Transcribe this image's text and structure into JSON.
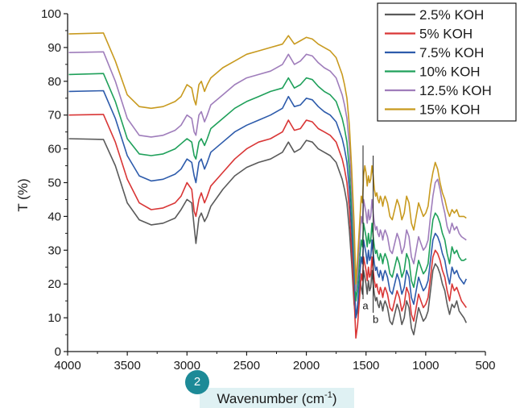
{
  "badge": "2",
  "chart_data": {
    "type": "line",
    "xlabel": "Wavenumber (cm",
    "xlabel_sup": "-1",
    "xlabel_close": ")",
    "ylabel": "T (%)",
    "xlim": [
      4000,
      500
    ],
    "ylim": [
      0,
      100
    ],
    "x_reversed": true,
    "xticks": [
      4000,
      3500,
      3000,
      2500,
      2000,
      1500,
      1000,
      500
    ],
    "yticks": [
      0,
      10,
      20,
      30,
      40,
      50,
      60,
      70,
      80,
      90,
      100
    ],
    "grid": false,
    "legend_position": "top-right",
    "annotations": [
      {
        "text": "a",
        "x": 1525,
        "y": 12.5,
        "line_x": 1525,
        "line_top": 61
      },
      {
        "text": "b",
        "x": 1440,
        "y": 8.5,
        "line_x": 1440,
        "line_top": 58
      }
    ],
    "x": [
      3990,
      3700,
      3600,
      3500,
      3400,
      3300,
      3200,
      3100,
      3050,
      3000,
      2960,
      2940,
      2925,
      2900,
      2880,
      2853,
      2830,
      2800,
      2700,
      2600,
      2500,
      2400,
      2300,
      2200,
      2150,
      2100,
      2050,
      2000,
      1950,
      1900,
      1850,
      1800,
      1750,
      1700,
      1680,
      1660,
      1640,
      1620,
      1600,
      1585,
      1570,
      1560,
      1550,
      1540,
      1530,
      1520,
      1510,
      1500,
      1490,
      1480,
      1470,
      1460,
      1450,
      1440,
      1430,
      1420,
      1410,
      1400,
      1390,
      1380,
      1370,
      1360,
      1350,
      1340,
      1320,
      1300,
      1280,
      1260,
      1240,
      1220,
      1200,
      1180,
      1160,
      1140,
      1120,
      1100,
      1080,
      1060,
      1040,
      1020,
      1000,
      980,
      960,
      940,
      920,
      900,
      880,
      860,
      840,
      820,
      800,
      780,
      760,
      740,
      720,
      700,
      680,
      660
    ],
    "series": [
      {
        "name": "2.5% KOH",
        "color": "#5a5a5a",
        "values": [
          63,
          62.8,
          55,
          44,
          39,
          37.5,
          38,
          39.5,
          42,
          45,
          44,
          37,
          32,
          39.5,
          41,
          38.5,
          40,
          43,
          48,
          52,
          54.5,
          56,
          57,
          59,
          62,
          59,
          60,
          62.5,
          62,
          60,
          59,
          58,
          56,
          51,
          48,
          44,
          36,
          26,
          14,
          10,
          12,
          16,
          21,
          19,
          17,
          24,
          22,
          20,
          17,
          21,
          18,
          19,
          24,
          20,
          17,
          15,
          16,
          14,
          13,
          15,
          14,
          12,
          14,
          15,
          13,
          9,
          8,
          11,
          14,
          12,
          8,
          10,
          15,
          13,
          7,
          5,
          9,
          13,
          11,
          9,
          10,
          12,
          18,
          24,
          26,
          25,
          23,
          20,
          18,
          14,
          11,
          14,
          13,
          15,
          12,
          11,
          10,
          8.5
        ]
      },
      {
        "name": "5% KOH",
        "color": "#d93636",
        "values": [
          70,
          70.2,
          62,
          51,
          44,
          42,
          42.5,
          44,
          46,
          50,
          48,
          41.5,
          40,
          45,
          47,
          44,
          46,
          49,
          53,
          57,
          60,
          62,
          63,
          65,
          68.5,
          65.5,
          66,
          68.5,
          68,
          66,
          65,
          64,
          62,
          57,
          54,
          50,
          42,
          30,
          16,
          4,
          8,
          13,
          18,
          23,
          21,
          28,
          26,
          24,
          21,
          25,
          22,
          23,
          28,
          24,
          21,
          19,
          20,
          18,
          17,
          19,
          18,
          16,
          18,
          19,
          17,
          13,
          12,
          15,
          18,
          16,
          12,
          14,
          19,
          17,
          11,
          9,
          13,
          17,
          15,
          13,
          14,
          16,
          22,
          28,
          30,
          29,
          27,
          24,
          22,
          18,
          15,
          20,
          18,
          19,
          17,
          15,
          14,
          13
        ]
      },
      {
        "name": "7.5% KOH",
        "color": "#2d5bab",
        "values": [
          77,
          77.2,
          69,
          58,
          52,
          50.5,
          51,
          52.5,
          54,
          57,
          56,
          52,
          50,
          56,
          57,
          54,
          56,
          59,
          62,
          65,
          67,
          68.5,
          70,
          72,
          75.5,
          72.5,
          73,
          75,
          74.5,
          72.5,
          71,
          70,
          68,
          63,
          60,
          56,
          48,
          36,
          22,
          10,
          14,
          19,
          24,
          28,
          26,
          33,
          31,
          29,
          26,
          30,
          27,
          28,
          33,
          29,
          26,
          24,
          25,
          23,
          22,
          24,
          23,
          21,
          23,
          24,
          22,
          18,
          17,
          20,
          23,
          21,
          17,
          19,
          24,
          22,
          16,
          14,
          18,
          22,
          20,
          18,
          19,
          21,
          27,
          33,
          35,
          34,
          32,
          29,
          27,
          23,
          20,
          25,
          23,
          24,
          22,
          21,
          20,
          21.5
        ]
      },
      {
        "name": "10% KOH",
        "color": "#1fa05a",
        "values": [
          82,
          82.3,
          74,
          63,
          58.5,
          58,
          58.5,
          60,
          61.5,
          63,
          62,
          58,
          57,
          62,
          63,
          61,
          63,
          66,
          69,
          72,
          74,
          75.5,
          77,
          78,
          81,
          78,
          79,
          81,
          80.5,
          78.5,
          77,
          76,
          74,
          69,
          66,
          62,
          54,
          42,
          28,
          15,
          19,
          24,
          29,
          33,
          31,
          38,
          36,
          34,
          31,
          35,
          32,
          33,
          38,
          34,
          31,
          29,
          30,
          28,
          27,
          29,
          28,
          26,
          28,
          29,
          27,
          23,
          22,
          25,
          28,
          26,
          22,
          24,
          29,
          27,
          21,
          19,
          23,
          27,
          25,
          23,
          24,
          26,
          33,
          39,
          41,
          40,
          38,
          35,
          33,
          29,
          26,
          31,
          29,
          30,
          28,
          27,
          27,
          27.5
        ]
      },
      {
        "name": "12.5% KOH",
        "color": "#9f7dbb",
        "values": [
          88.5,
          88.7,
          80,
          69,
          64,
          63.5,
          64,
          65.5,
          67,
          70,
          69,
          65,
          64,
          70,
          71,
          68,
          70,
          73,
          76,
          79,
          81,
          82,
          83,
          85,
          88,
          85,
          86,
          88,
          87.5,
          85.5,
          84,
          83,
          81,
          76,
          73,
          69,
          61,
          48,
          33,
          18,
          23,
          29,
          35,
          40,
          38,
          45,
          43,
          41,
          38,
          42,
          39,
          40,
          45,
          41,
          38,
          36,
          37,
          35,
          34,
          36,
          35,
          33,
          35,
          36,
          34,
          30,
          29,
          32,
          35,
          33,
          29,
          31,
          36,
          34,
          28,
          26,
          30,
          34,
          32,
          30,
          31,
          33,
          40,
          46,
          50,
          51,
          48,
          44,
          41,
          37,
          35,
          38,
          36,
          37,
          35,
          34,
          33.5,
          33
        ]
      },
      {
        "name": "15% KOH",
        "color": "#c89a1f",
        "values": [
          94,
          94.3,
          86,
          76,
          72.5,
          72,
          72.5,
          74,
          75.5,
          79,
          78,
          74.5,
          73,
          79,
          80,
          77,
          79,
          81,
          84,
          86,
          88,
          89,
          90,
          91,
          93.5,
          91,
          92,
          93,
          92.5,
          91,
          90,
          89,
          87,
          82,
          79,
          75,
          67,
          54,
          38,
          20,
          28,
          34,
          40,
          46,
          44,
          52,
          55,
          53,
          49,
          52,
          50,
          51,
          55,
          52,
          48,
          46,
          47,
          45,
          44,
          46,
          45,
          43,
          45,
          46,
          44,
          40,
          39,
          42,
          45,
          43,
          39,
          41,
          46,
          44,
          38,
          36,
          40,
          44,
          42,
          40,
          41,
          43,
          49,
          53,
          56,
          54,
          50,
          47,
          45,
          42,
          40,
          42,
          41,
          42,
          40,
          40,
          40,
          39.5
        ]
      }
    ]
  }
}
